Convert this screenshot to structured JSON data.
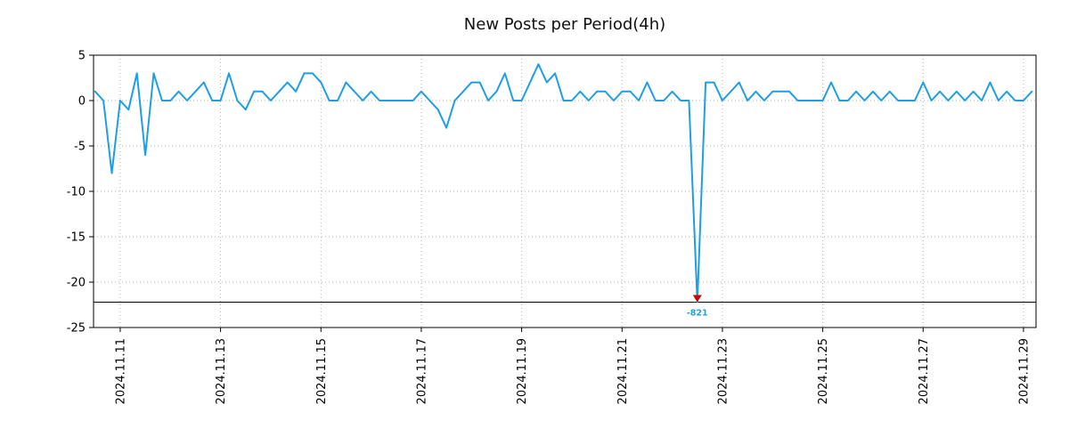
{
  "chart_data": {
    "type": "line",
    "title": "New Posts per Period(4h)",
    "xlabel": "",
    "ylabel": "",
    "period_hours": 4,
    "x_start": "2024-11-10T12:00:00",
    "interval_hours": 4,
    "x_domain": [
      "2024-11-10T11:15:00",
      "2024-11-29T06:00:00"
    ],
    "values": [
      1,
      0,
      -8,
      0,
      -1,
      3,
      -6,
      3,
      0,
      0,
      1,
      0,
      1,
      2,
      0,
      0,
      3,
      0,
      -1,
      1,
      1,
      0,
      1,
      2,
      1,
      3,
      3,
      2,
      0,
      0,
      2,
      1,
      0,
      1,
      0,
      0,
      0,
      0,
      0,
      1,
      0,
      -1,
      -3,
      0,
      1,
      2,
      2,
      0,
      1,
      3,
      0,
      0,
      2,
      4,
      2,
      3,
      0,
      0,
      1,
      0,
      1,
      1,
      0,
      1,
      1,
      0,
      2,
      0,
      0,
      1,
      0,
      0,
      -821,
      2,
      2,
      0,
      1,
      2,
      0,
      1,
      0,
      1,
      1,
      1,
      0,
      0,
      0,
      0,
      2,
      0,
      0,
      1,
      0,
      1,
      0,
      1,
      0,
      0,
      0,
      2,
      0,
      1,
      0,
      1,
      0,
      1,
      0,
      2,
      0,
      1,
      0,
      0,
      1
    ],
    "ylim": [
      -25,
      5
    ],
    "yticks": [
      5,
      0,
      -5,
      -10,
      -15,
      -20,
      -25
    ],
    "xticks": [
      "2024.11.11",
      "2024.11.13",
      "2024.11.15",
      "2024.11.17",
      "2024.11.19",
      "2024.11.21",
      "2024.11.23",
      "2024.11.25",
      "2024.11.27",
      "2024.11.29"
    ],
    "grid": true,
    "legend": "none",
    "clip_line_y": -22.2,
    "line_color": "#1e9fe5",
    "grid_color": "#b3b3b3",
    "frame_color": "#000000",
    "annotation": {
      "text": "-821",
      "value": -821,
      "color": "#1e9fe5",
      "marker": "down-triangle",
      "marker_color": "#d40000"
    }
  }
}
